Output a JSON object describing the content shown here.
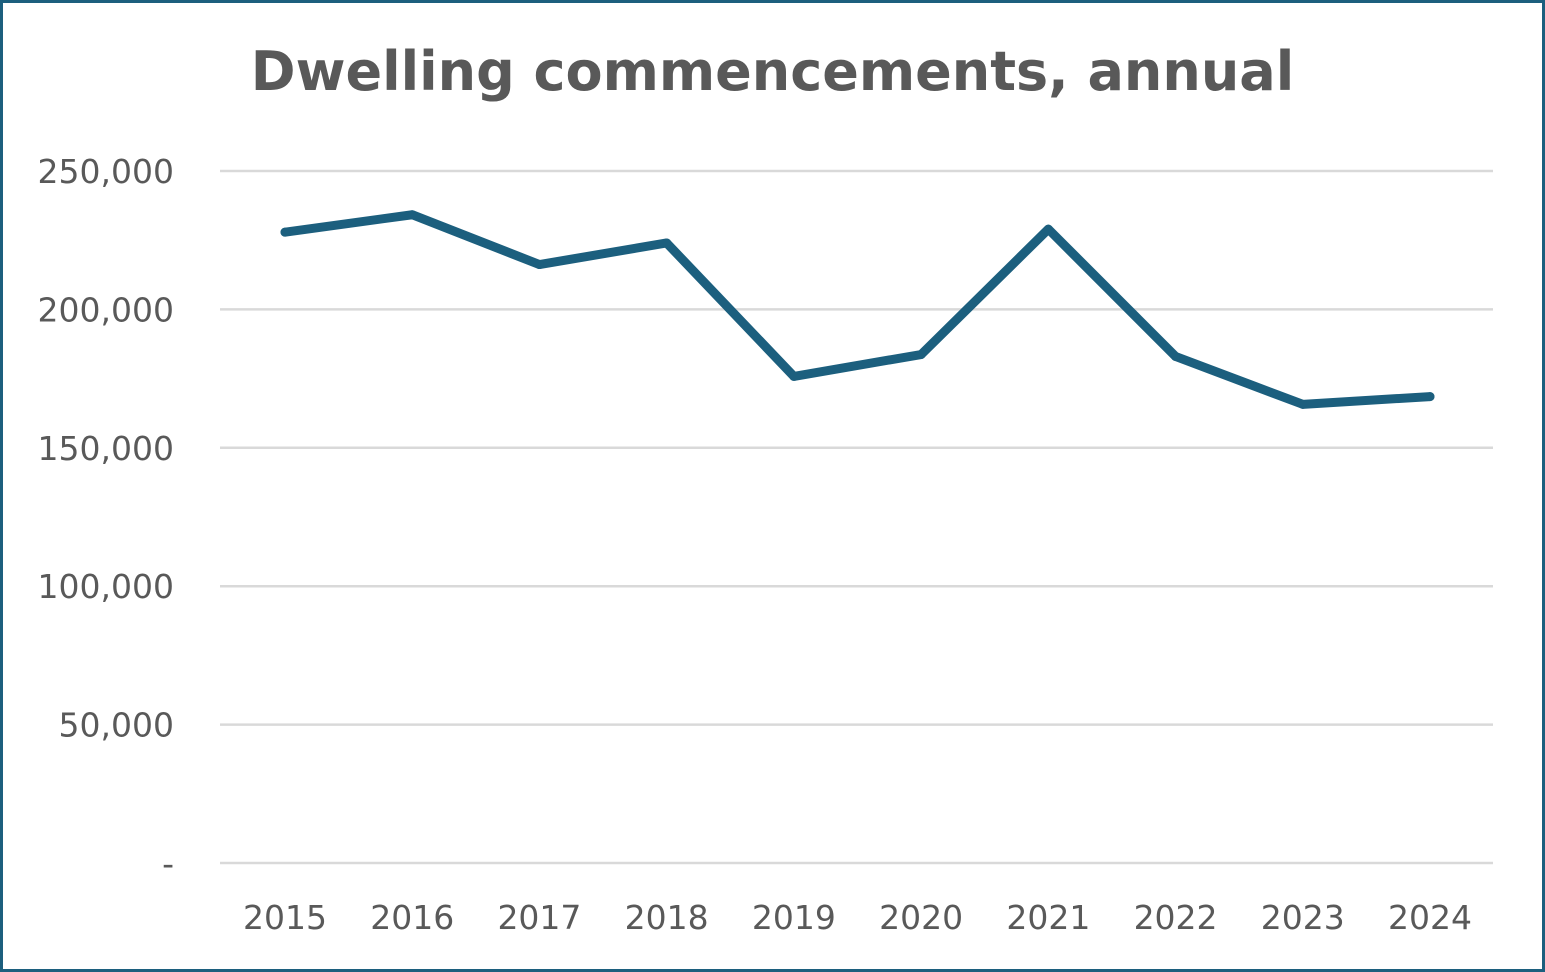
{
  "chart_data": {
    "type": "line",
    "title": "Dwelling commencements, annual",
    "xlabel": "",
    "ylabel": "",
    "categories": [
      "2015",
      "2016",
      "2017",
      "2018",
      "2019",
      "2020",
      "2021",
      "2022",
      "2023",
      "2024"
    ],
    "series": [
      {
        "name": "Dwelling commencements",
        "values": [
          227900,
          234200,
          216200,
          224000,
          175800,
          183700,
          229000,
          183000,
          165700,
          168500
        ],
        "color": "#1c5f7e"
      }
    ],
    "ylim": [
      0,
      250000
    ],
    "yticks": [
      0,
      50000,
      100000,
      150000,
      200000,
      250000
    ],
    "ytick_labels": [
      "-",
      "50,000",
      "100,000",
      "150,000",
      "200,000",
      "250,000"
    ],
    "grid": true,
    "legend": "none",
    "gridline_color": "#d9d9d9"
  }
}
